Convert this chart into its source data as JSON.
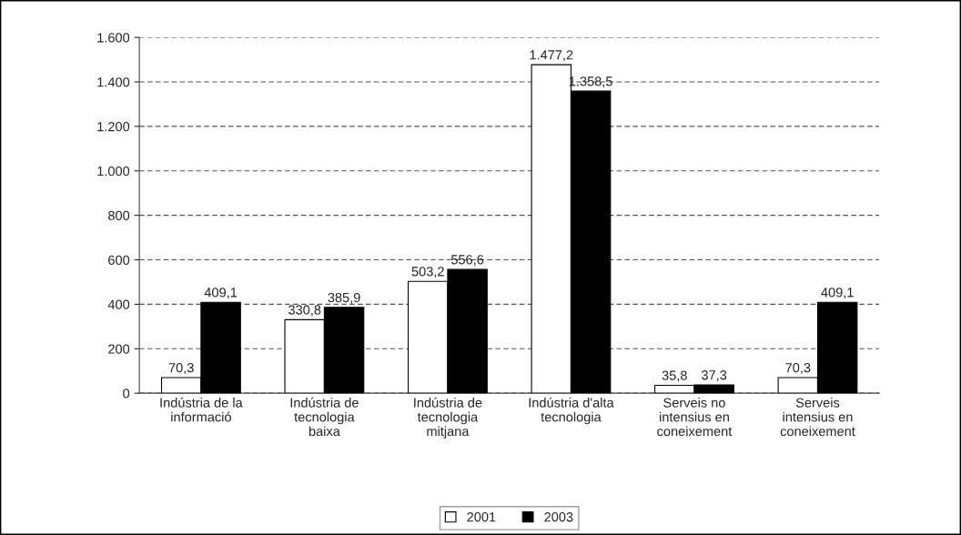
{
  "chart_data": {
    "type": "bar",
    "categories": [
      "Indústria de la\ninformació",
      "Indústria de\ntecnologia\nbaixa",
      "Indústria de\ntecnologia\nmitjana",
      "Indústria d'alta\ntecnologia",
      "Serveis no\nintensius en\nconeixement",
      "Serveis\nintensius en\nconeixement"
    ],
    "series": [
      {
        "name": "2001",
        "color": "#ffffff",
        "values": [
          70.3,
          330.8,
          503.2,
          1477.2,
          35.8,
          70.3
        ],
        "value_labels": [
          "70,3",
          "330,8",
          "503,2",
          "1.477,2",
          "35,8",
          "70,3"
        ]
      },
      {
        "name": "2003",
        "color": "#000000",
        "values": [
          409.1,
          385.9,
          556.6,
          1358.5,
          37.3,
          409.1
        ],
        "value_labels": [
          "409,1",
          "385,9",
          "556,6",
          "1.358,5",
          "37,3",
          "409,1"
        ]
      }
    ],
    "ylim": [
      0,
      1600
    ],
    "yticks": [
      0,
      200,
      400,
      600,
      800,
      {
        "value": 1000,
        "label": "1.000"
      },
      {
        "value": 1200,
        "label": "1.200"
      },
      {
        "value": 1400,
        "label": "1.400"
      },
      {
        "value": 1600,
        "label": "1.600"
      }
    ],
    "grid": "y",
    "legend": "bottom"
  }
}
